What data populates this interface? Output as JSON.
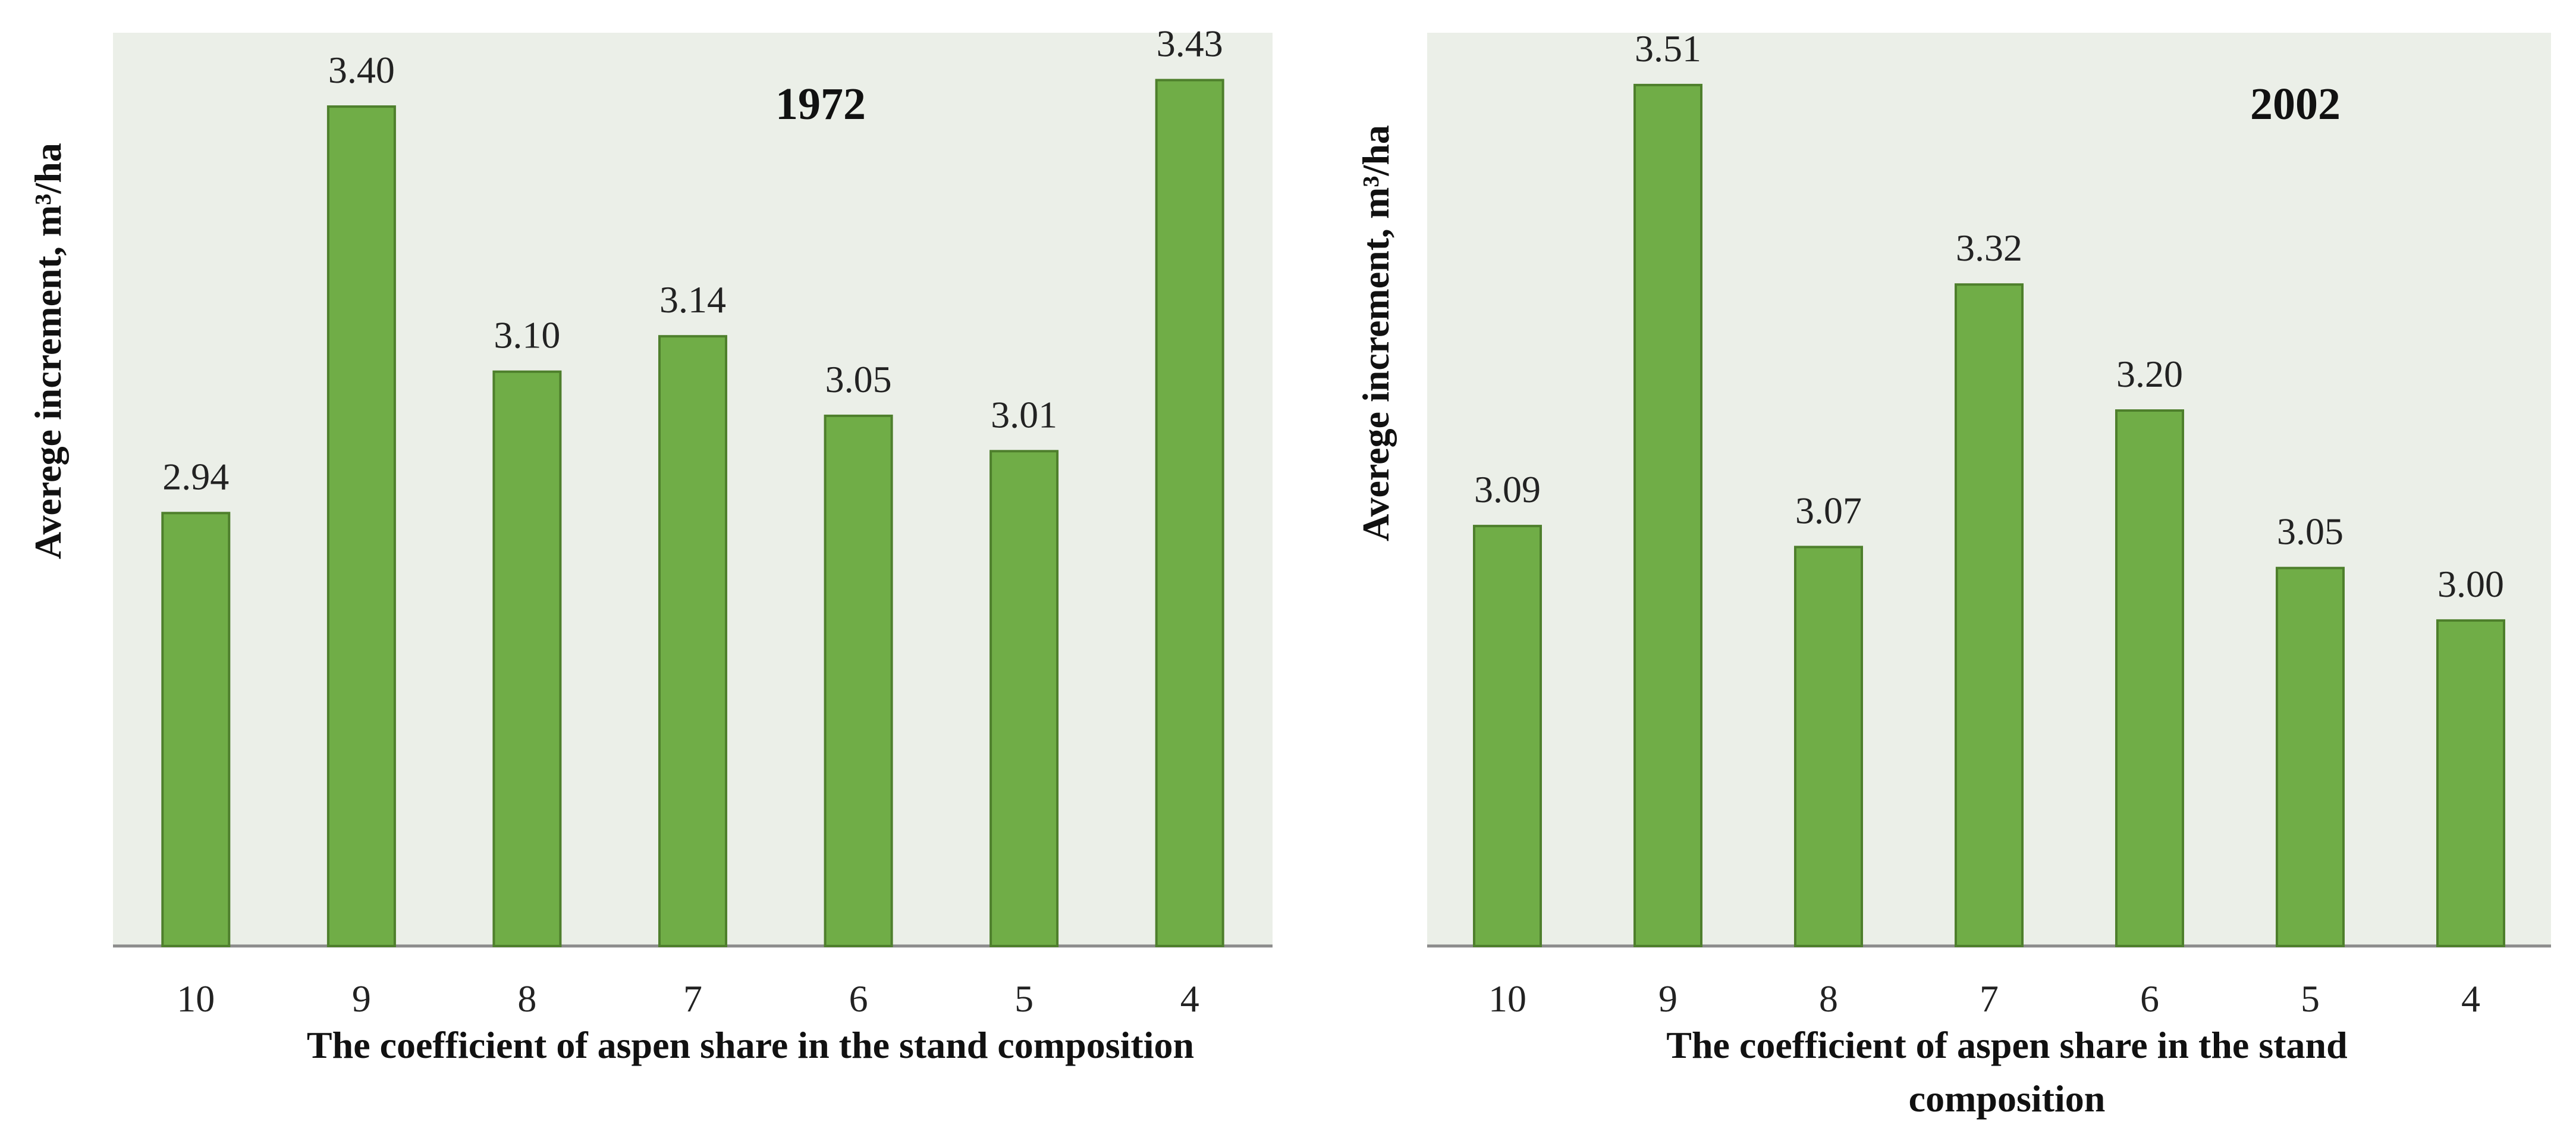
{
  "chart_data": [
    {
      "type": "bar",
      "title": "1972",
      "categories": [
        "10",
        "9",
        "8",
        "7",
        "6",
        "5",
        "4"
      ],
      "values": [
        2.94,
        3.4,
        3.1,
        3.14,
        3.05,
        3.01,
        3.43
      ],
      "value_labels": [
        "2.94",
        "3.40",
        "3.10",
        "3.14",
        "3.05",
        "3.01",
        "3.43"
      ],
      "xlabel": "The coefficient of aspen share in the stand composition",
      "ylabel": "Averege increment, m³/ha",
      "ylim": [
        2.45,
        3.46
      ],
      "grid": false,
      "bar_color": "#70ad47",
      "background_color": "#ebefe8"
    },
    {
      "type": "bar",
      "title": "2002",
      "categories": [
        "10",
        "9",
        "8",
        "7",
        "6",
        "5",
        "4"
      ],
      "values": [
        3.09,
        3.51,
        3.07,
        3.32,
        3.2,
        3.05,
        3.0
      ],
      "value_labels": [
        "3.09",
        "3.51",
        "3.07",
        "3.32",
        "3.20",
        "3.05",
        "3.00"
      ],
      "xlabel_lines": [
        "The coefficient of aspen share in the stand",
        "composition"
      ],
      "ylabel": "Averege increment, m³/ha",
      "ylim": [
        2.69,
        3.54
      ],
      "grid": false,
      "bar_color": "#70ad47",
      "background_color": "#ebefe8"
    }
  ]
}
